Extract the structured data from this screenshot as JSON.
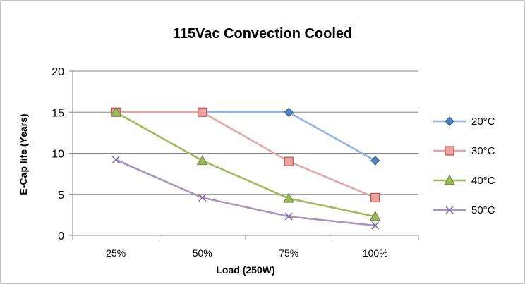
{
  "chart_data": {
    "type": "line",
    "title": "115Vac Convection Cooled",
    "xlabel": "Load (250W)",
    "ylabel": "E-Cap life (Years)",
    "categories": [
      "25%",
      "50%",
      "75%",
      "100%"
    ],
    "ylim": [
      0,
      20
    ],
    "yticks": [
      "0",
      "5",
      "10",
      "15",
      "20"
    ],
    "grid": true,
    "legend_position": "right",
    "series": [
      {
        "name": "20°C",
        "values": [
          15,
          15,
          15,
          9.1
        ],
        "color": "#4f81bd",
        "line_color": "#8eb4e3",
        "marker": "diamond"
      },
      {
        "name": "30°C",
        "values": [
          15,
          15,
          9.0,
          4.6
        ],
        "color": "#c0504d",
        "line_color": "#e6a5a3",
        "marker": "square"
      },
      {
        "name": "40°C",
        "values": [
          15,
          9.1,
          4.5,
          2.3
        ],
        "color": "#9bbb59",
        "line_color": "#9bbb59",
        "marker": "triangle"
      },
      {
        "name": "50°C",
        "values": [
          9.2,
          4.6,
          2.3,
          1.2
        ],
        "color": "#8064a2",
        "line_color": "#a593c2",
        "marker": "x"
      }
    ]
  }
}
